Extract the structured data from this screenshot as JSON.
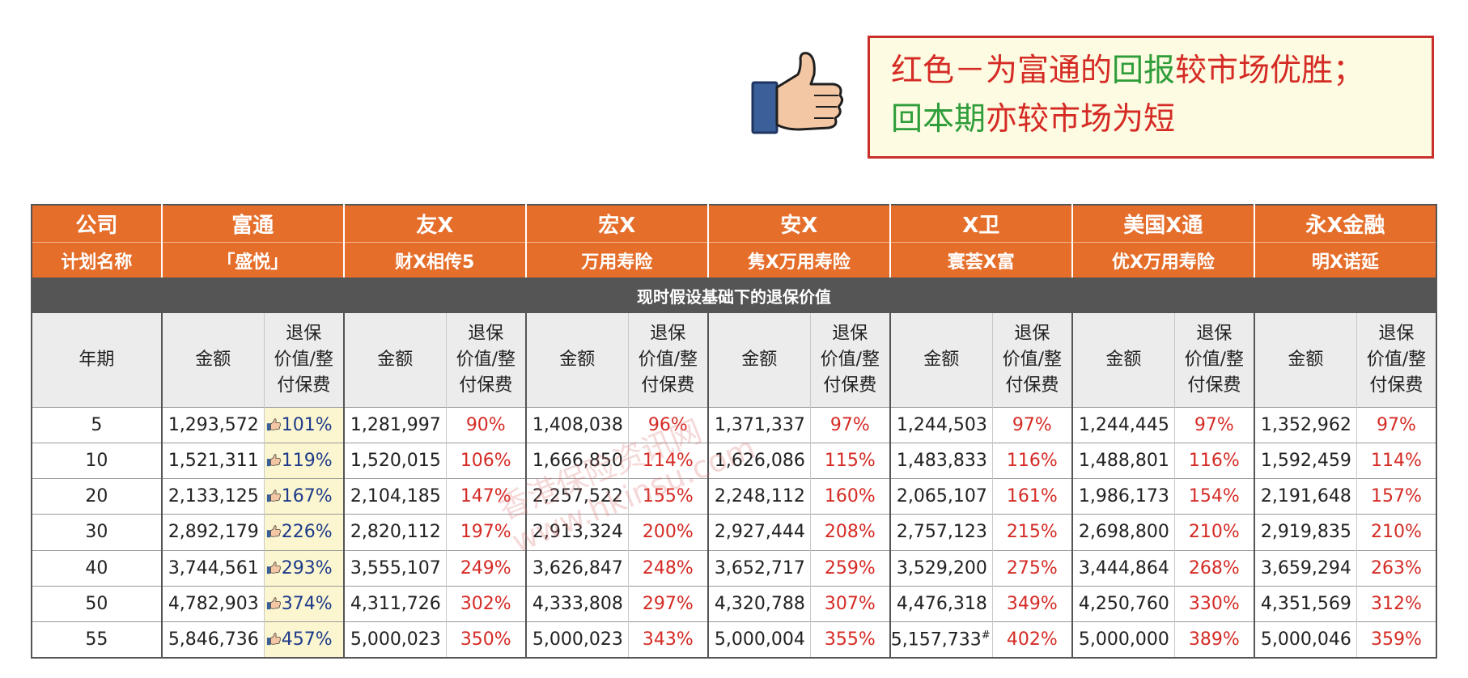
{
  "callout": {
    "line1": [
      {
        "text": "红色－为富通的",
        "color": "red"
      },
      {
        "text": "回报",
        "color": "green"
      },
      {
        "text": "较市场优胜；",
        "color": "red"
      }
    ],
    "line2": [
      {
        "text": "回本期",
        "color": "green"
      },
      {
        "text": "亦较市场为短",
        "color": "red"
      }
    ]
  },
  "table": {
    "company_label": "公司",
    "plan_label": "计划名称",
    "section_title": "现时假设基础下的退保价值",
    "year_label": "年期",
    "amount_label": "金额",
    "ratio_label": [
      "退保",
      "价值/整",
      "付保费"
    ],
    "companies": [
      {
        "name": "富通",
        "plan": "「盛悦」"
      },
      {
        "name": "友X",
        "plan": "财X相传5"
      },
      {
        "name": "宏X",
        "plan": "万用寿险"
      },
      {
        "name": "安X",
        "plan": "隽X万用寿险"
      },
      {
        "name": "X卫",
        "plan": "寰荟X富"
      },
      {
        "name": "美国X通",
        "plan": "优X万用寿险"
      },
      {
        "name": "永X金融",
        "plan": "明X诺延"
      }
    ],
    "rows": [
      {
        "year": "5",
        "cells": [
          [
            "1,293,572",
            "101%"
          ],
          [
            "1,281,997",
            "90%"
          ],
          [
            "1,408,038",
            "96%"
          ],
          [
            "1,371,337",
            "97%"
          ],
          [
            "1,244,503",
            "97%"
          ],
          [
            "1,244,445",
            "97%"
          ],
          [
            "1,352,962",
            "97%"
          ]
        ]
      },
      {
        "year": "10",
        "cells": [
          [
            "1,521,311",
            "119%"
          ],
          [
            "1,520,015",
            "106%"
          ],
          [
            "1,666,850",
            "114%"
          ],
          [
            "1,626,086",
            "115%"
          ],
          [
            "1,483,833",
            "116%"
          ],
          [
            "1,488,801",
            "116%"
          ],
          [
            "1,592,459",
            "114%"
          ]
        ]
      },
      {
        "year": "20",
        "cells": [
          [
            "2,133,125",
            "167%"
          ],
          [
            "2,104,185",
            "147%"
          ],
          [
            "2,257,522",
            "155%"
          ],
          [
            "2,248,112",
            "160%"
          ],
          [
            "2,065,107",
            "161%"
          ],
          [
            "1,986,173",
            "154%"
          ],
          [
            "2,191,648",
            "157%"
          ]
        ]
      },
      {
        "year": "30",
        "cells": [
          [
            "2,892,179",
            "226%"
          ],
          [
            "2,820,112",
            "197%"
          ],
          [
            "2,913,324",
            "200%"
          ],
          [
            "2,927,444",
            "208%"
          ],
          [
            "2,757,123",
            "215%"
          ],
          [
            "2,698,800",
            "210%"
          ],
          [
            "2,919,835",
            "210%"
          ]
        ]
      },
      {
        "year": "40",
        "cells": [
          [
            "3,744,561",
            "293%"
          ],
          [
            "3,555,107",
            "249%"
          ],
          [
            "3,626,847",
            "248%"
          ],
          [
            "3,652,717",
            "259%"
          ],
          [
            "3,529,200",
            "275%"
          ],
          [
            "3,444,864",
            "268%"
          ],
          [
            "3,659,294",
            "263%"
          ]
        ]
      },
      {
        "year": "50",
        "cells": [
          [
            "4,782,903",
            "374%"
          ],
          [
            "4,311,726",
            "302%"
          ],
          [
            "4,333,808",
            "297%"
          ],
          [
            "4,320,788",
            "307%"
          ],
          [
            "4,476,318",
            "349%"
          ],
          [
            "4,250,760",
            "330%"
          ],
          [
            "4,351,569",
            "312%"
          ]
        ]
      },
      {
        "year": "55",
        "cells": [
          [
            "5,846,736",
            "457%"
          ],
          [
            "5,000,023",
            "350%"
          ],
          [
            "5,000,023",
            "343%"
          ],
          [
            "5,000,004",
            "355%"
          ],
          [
            "5,157,733",
            "402%"
          ],
          [
            "5,000,000",
            "389%"
          ],
          [
            "5,000,046",
            "359%"
          ]
        ]
      }
    ],
    "footnote_marker": "#",
    "footnote_row": 6,
    "footnote_col": 4
  },
  "watermark": [
    "香港保险资讯网",
    "www.hkinsu.com"
  ],
  "colors": {
    "header": "#e56e2b",
    "section": "#555555",
    "highlight": "#fbf6cf",
    "red": "#d52b25",
    "green": "#2e9d3a"
  },
  "icons": {
    "callout": "thumbs-up-icon",
    "cell_marker": "thumbs-up-icon"
  }
}
